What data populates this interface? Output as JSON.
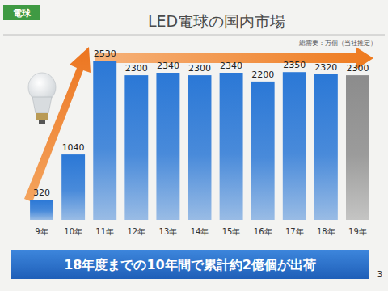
{
  "chart_data": {
    "type": "bar",
    "title": "LED電球の国内市場",
    "annotations": [
      "電球",
      "総需要：万個（当社推定）",
      "18年度までの10年間で累計約2億個が出荷",
      "3"
    ],
    "categories": [
      "9年",
      "10年",
      "11年",
      "12年",
      "13年",
      "14年",
      "15年",
      "16年",
      "17年",
      "18年",
      "19年"
    ],
    "values": [
      320,
      1040,
      2530,
      2300,
      2340,
      2300,
      2340,
      2200,
      2350,
      2320,
      2300
    ],
    "colors": [
      "#2b78d6",
      "#2b78d6",
      "#2b78d6",
      "#2b78d6",
      "#2b78d6",
      "#2b78d6",
      "#2b78d6",
      "#2b78d6",
      "#2b78d6",
      "#2b78d6",
      "#8c8c8c"
    ],
    "ylim": [
      0,
      2700
    ],
    "data_labels": true,
    "tick_labels": "x",
    "grid": false
  }
}
